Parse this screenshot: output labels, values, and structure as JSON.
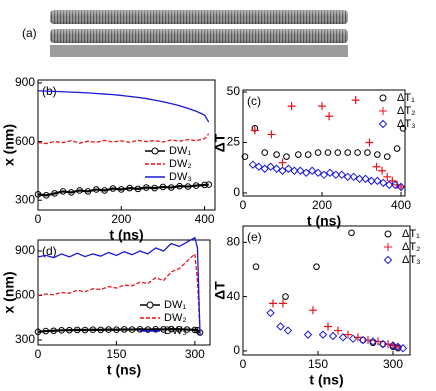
{
  "panel_a_label": "(a)",
  "chart_data": [
    {
      "type": "line",
      "label": "(b)",
      "x_label": "t (ns)",
      "y_label": "x (nm)",
      "xlim": [
        0,
        425
      ],
      "ylim": [
        250,
        915
      ],
      "xticks": [
        0,
        200,
        400
      ],
      "yticks": [
        300,
        600,
        900
      ],
      "legend": "center right",
      "x": [
        0,
        20,
        40,
        60,
        80,
        100,
        120,
        140,
        160,
        180,
        200,
        220,
        240,
        260,
        280,
        300,
        320,
        340,
        360,
        380,
        400,
        410
      ],
      "series": [
        {
          "name": "DW₁",
          "color": "#000000",
          "style": "solid",
          "marker": "circle",
          "values": [
            330,
            325,
            335,
            345,
            340,
            350,
            345,
            355,
            350,
            360,
            355,
            362,
            358,
            365,
            362,
            368,
            365,
            372,
            370,
            375,
            378,
            380
          ]
        },
        {
          "name": "DW₂",
          "color": "#e8141a",
          "style": "dashed",
          "values": [
            595,
            590,
            600,
            595,
            605,
            592,
            602,
            596,
            606,
            598,
            604,
            596,
            606,
            600,
            605,
            598,
            608,
            602,
            610,
            605,
            615,
            640
          ]
        },
        {
          "name": "DW₃",
          "color": "#1a1ad8",
          "style": "solid",
          "values": [
            860,
            858,
            857,
            855,
            853,
            851,
            849,
            846,
            843,
            840,
            836,
            831,
            826,
            820,
            812,
            804,
            794,
            783,
            770,
            755,
            735,
            700
          ]
        }
      ]
    },
    {
      "type": "scatter",
      "label": "(c)",
      "x_label": "t (ns)",
      "y_label": "ΔT",
      "xlim": [
        0,
        410
      ],
      "ylim": [
        -1.5,
        51
      ],
      "xticks": [
        0,
        200,
        400
      ],
      "yticks": [
        0,
        25,
        50
      ],
      "legend": "upper right",
      "series": [
        {
          "name": "ΔT₁",
          "color": "#000000",
          "marker": "circle",
          "x": [
            5,
            30,
            55,
            85,
            110,
            140,
            165,
            190,
            215,
            240,
            265,
            290,
            315,
            340,
            365,
            390,
            405
          ],
          "values": [
            18,
            32,
            20,
            19,
            18,
            19,
            19,
            20,
            20,
            20,
            20,
            20,
            20,
            19,
            18,
            22,
            32
          ]
        },
        {
          "name": "ΔT₂",
          "color": "#e8141a",
          "marker": "plus",
          "x": [
            30,
            72,
            100,
            123,
            200,
            218,
            285,
            320,
            338,
            352,
            365,
            378,
            390,
            400
          ],
          "values": [
            31,
            29,
            15,
            43,
            43,
            38,
            46,
            25,
            13,
            11,
            8,
            6,
            4,
            3
          ]
        },
        {
          "name": "ΔT₃",
          "color": "#1a1ad8",
          "marker": "diamond",
          "x": [
            25,
            40,
            55,
            70,
            85,
            100,
            115,
            130,
            145,
            160,
            175,
            190,
            205,
            220,
            235,
            250,
            265,
            280,
            295,
            310,
            325,
            340,
            355,
            370,
            385,
            400
          ],
          "values": [
            14,
            13,
            12,
            13,
            12,
            11,
            12,
            11,
            11,
            10,
            11,
            10,
            9,
            10,
            9,
            9,
            8,
            8,
            7,
            7,
            6,
            6,
            5,
            4,
            4,
            3
          ]
        }
      ]
    },
    {
      "type": "line",
      "label": "(d)",
      "x_label": "t (ns)",
      "y_label": "x (nm)",
      "xlim": [
        0,
        329
      ],
      "ylim": [
        266,
        974
      ],
      "xticks": [
        0,
        150,
        300
      ],
      "yticks": [
        300,
        600,
        900
      ],
      "legend": "lower right",
      "x": [
        0,
        15,
        30,
        45,
        60,
        75,
        90,
        105,
        120,
        135,
        150,
        165,
        180,
        195,
        210,
        225,
        240,
        255,
        270,
        285,
        300,
        305,
        310
      ],
      "series": [
        {
          "name": "DW₁",
          "color": "#000000",
          "style": "solid",
          "marker": "circle",
          "values": [
            355,
            360,
            362,
            365,
            366,
            368,
            367,
            369,
            368,
            370,
            369,
            371,
            370,
            372,
            370,
            372,
            371,
            373,
            372,
            370,
            368,
            365,
            350
          ]
        },
        {
          "name": "DW₂",
          "color": "#e8141a",
          "style": "dashed",
          "values": [
            600,
            610,
            605,
            620,
            615,
            635,
            625,
            645,
            640,
            660,
            650,
            670,
            665,
            690,
            680,
            720,
            700,
            760,
            780,
            830,
            880,
            700,
            340
          ]
        },
        {
          "name": "DW₃",
          "color": "#1a1ad8",
          "style": "solid",
          "values": [
            860,
            870,
            855,
            880,
            860,
            885,
            862,
            880,
            865,
            890,
            870,
            895,
            875,
            900,
            880,
            920,
            900,
            950,
            930,
            960,
            990,
            920,
            330
          ]
        }
      ]
    },
    {
      "type": "scatter",
      "label": "(e)",
      "x_label": "t (ns)",
      "y_label": "ΔT",
      "xlim": [
        0,
        334
      ],
      "ylim": [
        -3,
        92
      ],
      "xticks": [
        0,
        150,
        300
      ],
      "yticks": [
        0,
        40,
        80
      ],
      "legend": "upper right",
      "series": [
        {
          "name": "ΔT₁",
          "color": "#000000",
          "marker": "circle",
          "x": [
            26,
            85,
            147,
            217,
            240,
            260,
            280,
            300,
            310
          ],
          "values": [
            62,
            40,
            62,
            87,
            8,
            6,
            5,
            3,
            2
          ]
        },
        {
          "name": "ΔT₂",
          "color": "#e8141a",
          "marker": "plus",
          "x": [
            60,
            80,
            140,
            170,
            190,
            210,
            230,
            250,
            270,
            290,
            300,
            310
          ],
          "values": [
            35,
            35,
            30,
            18,
            15,
            12,
            10,
            8,
            7,
            5,
            4,
            3
          ]
        },
        {
          "name": "ΔT₃",
          "color": "#1a1ad8",
          "marker": "diamond",
          "x": [
            55,
            75,
            90,
            130,
            160,
            180,
            200,
            220,
            240,
            260,
            280,
            300,
            310,
            320
          ],
          "values": [
            28,
            18,
            15,
            12,
            12,
            11,
            10,
            9,
            8,
            7,
            5,
            4,
            3,
            2
          ]
        }
      ]
    }
  ]
}
